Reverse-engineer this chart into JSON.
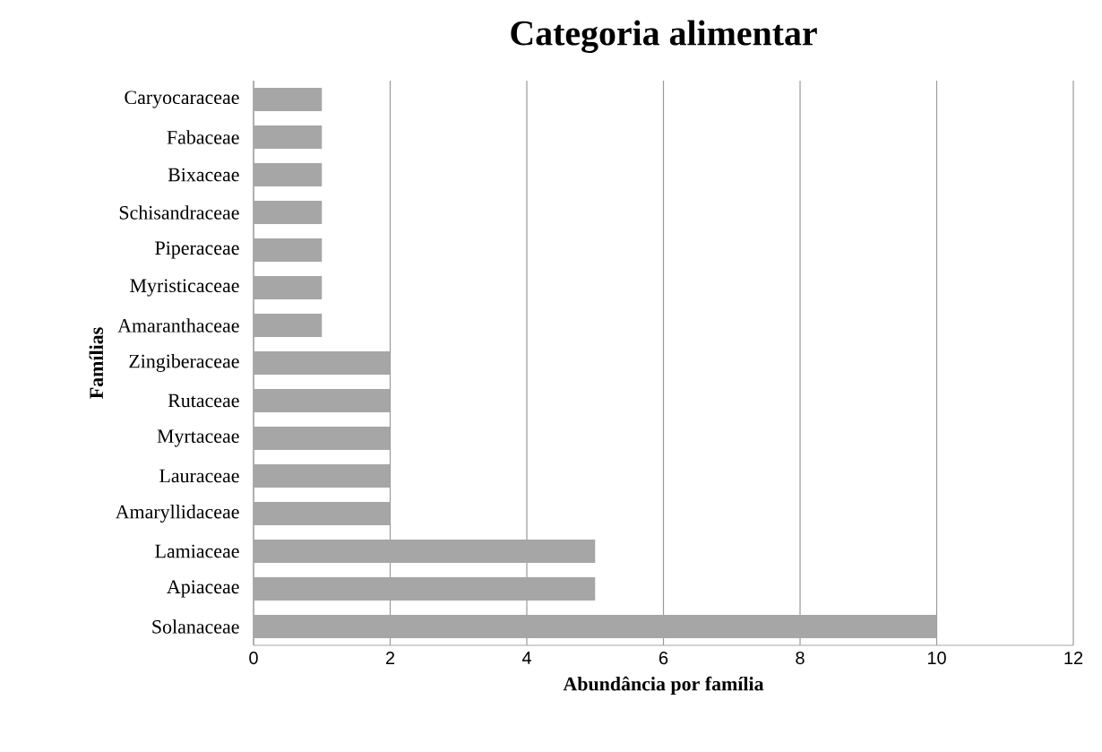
{
  "chart_data": {
    "type": "bar",
    "orientation": "horizontal",
    "title": "Categoria alimentar",
    "xlabel": "Abundância por família",
    "ylabel": "Famílias",
    "categories": [
      "Caryocaraceae",
      "Fabaceae",
      "Bixaceae",
      "Schisandraceae",
      "Piperaceae",
      "Myristicaceae",
      "Amaranthaceae",
      "Zingiberaceae",
      "Rutaceae",
      "Myrtaceae",
      "Lauraceae",
      "Amaryllidaceae",
      "Lamiaceae",
      "Apiaceae",
      "Solanaceae"
    ],
    "values": [
      1,
      1,
      1,
      1,
      1,
      1,
      1,
      2,
      2,
      2,
      2,
      2,
      5,
      5,
      10
    ],
    "color": "#a6a6a6",
    "xlim": [
      0,
      12
    ],
    "xticks": [
      0,
      2,
      4,
      6,
      8,
      10,
      12
    ],
    "grid": "x"
  }
}
